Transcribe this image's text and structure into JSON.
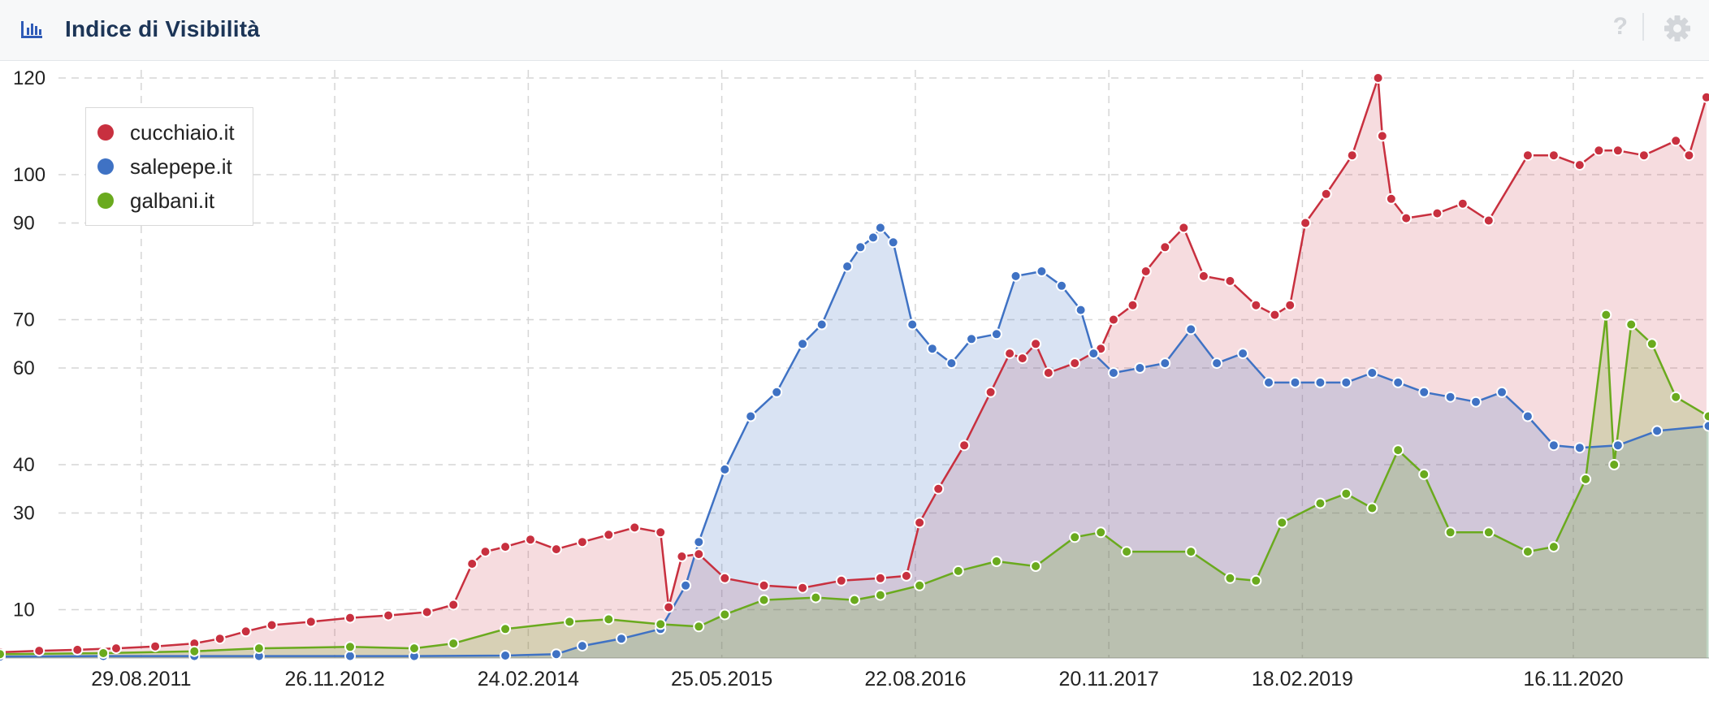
{
  "header": {
    "title": "Indice di Visibilità",
    "help_label": "?"
  },
  "icons": {
    "chart": "bar-chart-icon",
    "help": "help-icon",
    "settings": "gear-icon"
  },
  "colors": {
    "cucchiaio": "#c8303f",
    "salepepe": "#3f72c4",
    "galbani": "#6aaa1e"
  },
  "chart_data": {
    "type": "area",
    "title": "",
    "xlabel": "",
    "ylabel": "",
    "x_ticks": [
      "29.08.2011",
      "26.11.2012",
      "24.02.2014",
      "25.05.2015",
      "22.08.2016",
      "20.11.2017",
      "18.02.2019",
      "16.11.2020"
    ],
    "y_ticks": [
      10,
      30,
      40,
      60,
      70,
      90,
      100,
      120
    ],
    "ylim": [
      0,
      120
    ],
    "grid": true,
    "legend_position": "top-left",
    "series": [
      {
        "name": "cucchiaio.it",
        "color": "#c8303f",
        "points": [
          [
            "2010-10-01",
            1.2
          ],
          [
            "2011-01-01",
            1.5
          ],
          [
            "2011-04-01",
            1.7
          ],
          [
            "2011-07-01",
            2.0
          ],
          [
            "2011-10-01",
            2.4
          ],
          [
            "2012-01-01",
            3.0
          ],
          [
            "2012-03-01",
            4.0
          ],
          [
            "2012-05-01",
            5.5
          ],
          [
            "2012-07-01",
            6.8
          ],
          [
            "2012-10-01",
            7.5
          ],
          [
            "2013-01-01",
            8.3
          ],
          [
            "2013-04-01",
            8.8
          ],
          [
            "2013-07-01",
            9.5
          ],
          [
            "2013-09-01",
            11.0
          ],
          [
            "2013-10-15",
            19.5
          ],
          [
            "2013-11-15",
            22.0
          ],
          [
            "2014-01-01",
            23.0
          ],
          [
            "2014-03-01",
            24.5
          ],
          [
            "2014-05-01",
            22.5
          ],
          [
            "2014-07-01",
            24.0
          ],
          [
            "2014-09-01",
            25.5
          ],
          [
            "2014-11-01",
            27.0
          ],
          [
            "2015-01-01",
            26.0
          ],
          [
            "2015-01-20",
            10.5
          ],
          [
            "2015-02-20",
            21.0
          ],
          [
            "2015-04-01",
            21.5
          ],
          [
            "2015-06-01",
            16.5
          ],
          [
            "2015-09-01",
            15.0
          ],
          [
            "2015-12-01",
            14.5
          ],
          [
            "2016-03-01",
            16.0
          ],
          [
            "2016-06-01",
            16.5
          ],
          [
            "2016-08-01",
            17.0
          ],
          [
            "2016-09-01",
            28.0
          ],
          [
            "2016-10-15",
            35.0
          ],
          [
            "2016-12-15",
            44.0
          ],
          [
            "2017-02-15",
            55.0
          ],
          [
            "2017-04-01",
            63.0
          ],
          [
            "2017-05-01",
            62.0
          ],
          [
            "2017-06-01",
            65.0
          ],
          [
            "2017-07-01",
            59.0
          ],
          [
            "2017-09-01",
            61.0
          ],
          [
            "2017-11-01",
            64.0
          ],
          [
            "2017-12-01",
            70.0
          ],
          [
            "2018-01-15",
            73.0
          ],
          [
            "2018-02-15",
            80.0
          ],
          [
            "2018-04-01",
            85.0
          ],
          [
            "2018-05-15",
            89.0
          ],
          [
            "2018-07-01",
            79.0
          ],
          [
            "2018-09-01",
            78.0
          ],
          [
            "2018-11-01",
            73.0
          ],
          [
            "2018-12-15",
            71.0
          ],
          [
            "2019-01-20",
            73.0
          ],
          [
            "2019-02-25",
            90.0
          ],
          [
            "2019-04-15",
            96.0
          ],
          [
            "2019-06-15",
            104.0
          ],
          [
            "2019-08-15",
            120.0
          ],
          [
            "2019-08-25",
            108.0
          ],
          [
            "2019-09-15",
            95.0
          ],
          [
            "2019-10-20",
            91.0
          ],
          [
            "2020-01-01",
            92.0
          ],
          [
            "2020-03-01",
            94.0
          ],
          [
            "2020-05-01",
            90.5
          ],
          [
            "2020-08-01",
            104.0
          ],
          [
            "2020-10-01",
            104.0
          ],
          [
            "2020-12-01",
            102.0
          ],
          [
            "2021-01-15",
            105.0
          ],
          [
            "2021-03-01",
            105.0
          ],
          [
            "2021-05-01",
            104.0
          ],
          [
            "2021-07-15",
            107.0
          ],
          [
            "2021-08-15",
            104.0
          ],
          [
            "2021-09-25",
            116.0
          ]
        ]
      },
      {
        "name": "salepepe.it",
        "color": "#3f72c4",
        "points": [
          [
            "2010-10-01",
            0.3
          ],
          [
            "2011-06-01",
            0.4
          ],
          [
            "2012-01-01",
            0.4
          ],
          [
            "2012-06-01",
            0.4
          ],
          [
            "2013-01-01",
            0.4
          ],
          [
            "2013-06-01",
            0.4
          ],
          [
            "2014-01-01",
            0.5
          ],
          [
            "2014-05-01",
            0.8
          ],
          [
            "2014-07-01",
            2.5
          ],
          [
            "2014-10-01",
            4.0
          ],
          [
            "2015-01-01",
            6.0
          ],
          [
            "2015-03-01",
            15.0
          ],
          [
            "2015-04-01",
            24.0
          ],
          [
            "2015-06-01",
            39.0
          ],
          [
            "2015-08-01",
            50.0
          ],
          [
            "2015-10-01",
            55.0
          ],
          [
            "2015-12-01",
            65.0
          ],
          [
            "2016-01-15",
            69.0
          ],
          [
            "2016-03-15",
            81.0
          ],
          [
            "2016-04-15",
            85.0
          ],
          [
            "2016-05-15",
            87.0
          ],
          [
            "2016-06-01",
            89.0
          ],
          [
            "2016-07-01",
            86.0
          ],
          [
            "2016-08-15",
            69.0
          ],
          [
            "2016-10-01",
            64.0
          ],
          [
            "2016-11-15",
            61.0
          ],
          [
            "2017-01-01",
            66.0
          ],
          [
            "2017-03-01",
            67.0
          ],
          [
            "2017-04-15",
            79.0
          ],
          [
            "2017-06-15",
            80.0
          ],
          [
            "2017-08-01",
            77.0
          ],
          [
            "2017-09-15",
            72.0
          ],
          [
            "2017-10-15",
            63.0
          ],
          [
            "2017-12-01",
            59.0
          ],
          [
            "2018-02-01",
            60.0
          ],
          [
            "2018-04-01",
            61.0
          ],
          [
            "2018-06-01",
            68.0
          ],
          [
            "2018-08-01",
            61.0
          ],
          [
            "2018-10-01",
            63.0
          ],
          [
            "2018-12-01",
            57.0
          ],
          [
            "2019-02-01",
            57.0
          ],
          [
            "2019-04-01",
            57.0
          ],
          [
            "2019-06-01",
            57.0
          ],
          [
            "2019-08-01",
            59.0
          ],
          [
            "2019-10-01",
            57.0
          ],
          [
            "2019-12-01",
            55.0
          ],
          [
            "2020-02-01",
            54.0
          ],
          [
            "2020-04-01",
            53.0
          ],
          [
            "2020-06-01",
            55.0
          ],
          [
            "2020-08-01",
            50.0
          ],
          [
            "2020-10-01",
            44.0
          ],
          [
            "2020-12-01",
            43.5
          ],
          [
            "2021-03-01",
            44.0
          ],
          [
            "2021-06-01",
            47.0
          ],
          [
            "2021-09-30",
            48.0
          ]
        ]
      },
      {
        "name": "galbani.it",
        "color": "#6aaa1e",
        "points": [
          [
            "2010-10-01",
            0.8
          ],
          [
            "2011-06-01",
            1.0
          ],
          [
            "2012-01-01",
            1.4
          ],
          [
            "2012-06-01",
            2.0
          ],
          [
            "2013-01-01",
            2.3
          ],
          [
            "2013-06-01",
            2.0
          ],
          [
            "2013-09-01",
            3.0
          ],
          [
            "2014-01-01",
            6.0
          ],
          [
            "2014-06-01",
            7.5
          ],
          [
            "2014-09-01",
            8.0
          ],
          [
            "2015-01-01",
            7.0
          ],
          [
            "2015-04-01",
            6.5
          ],
          [
            "2015-06-01",
            9.0
          ],
          [
            "2015-09-01",
            12.0
          ],
          [
            "2016-01-01",
            12.5
          ],
          [
            "2016-04-01",
            12.0
          ],
          [
            "2016-06-01",
            13.0
          ],
          [
            "2016-09-01",
            15.0
          ],
          [
            "2016-12-01",
            18.0
          ],
          [
            "2017-03-01",
            20.0
          ],
          [
            "2017-06-01",
            19.0
          ],
          [
            "2017-09-01",
            25.0
          ],
          [
            "2017-11-01",
            26.0
          ],
          [
            "2018-01-01",
            22.0
          ],
          [
            "2018-06-01",
            22.0
          ],
          [
            "2018-09-01",
            16.5
          ],
          [
            "2018-11-01",
            16.0
          ],
          [
            "2019-01-01",
            28.0
          ],
          [
            "2019-04-01",
            32.0
          ],
          [
            "2019-06-01",
            34.0
          ],
          [
            "2019-08-01",
            31.0
          ],
          [
            "2019-10-01",
            43.0
          ],
          [
            "2019-12-01",
            38.0
          ],
          [
            "2020-02-01",
            26.0
          ],
          [
            "2020-05-01",
            26.0
          ],
          [
            "2020-08-01",
            22.0
          ],
          [
            "2020-10-01",
            23.0
          ],
          [
            "2020-12-15",
            37.0
          ],
          [
            "2021-02-01",
            71.0
          ],
          [
            "2021-02-20",
            40.0
          ],
          [
            "2021-04-01",
            69.0
          ],
          [
            "2021-05-20",
            65.0
          ],
          [
            "2021-07-15",
            54.0
          ],
          [
            "2021-09-30",
            50.0
          ]
        ]
      }
    ]
  }
}
